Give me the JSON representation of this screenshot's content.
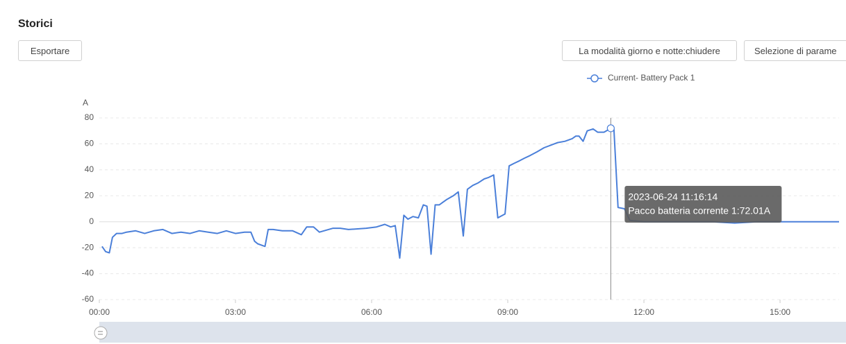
{
  "header": {
    "title": "Storici"
  },
  "buttons": {
    "export": "Esportare",
    "day_night": "La modalità giorno e notte:chiudere",
    "params": "Selezione di parame"
  },
  "chart_data": {
    "type": "line",
    "y_label": "A",
    "x": [
      0.06,
      0.14,
      0.22,
      0.29,
      0.38,
      0.5,
      0.6,
      0.8,
      1.0,
      1.2,
      1.4,
      1.6,
      1.8,
      2.0,
      2.2,
      2.4,
      2.6,
      2.8,
      3.0,
      3.2,
      3.34,
      3.42,
      3.49,
      3.65,
      3.72,
      3.83,
      4.03,
      4.26,
      4.45,
      4.57,
      4.72,
      4.85,
      4.95,
      5.15,
      5.31,
      5.49,
      5.88,
      6.11,
      6.29,
      6.42,
      6.52,
      6.62,
      6.71,
      6.8,
      6.91,
      7.03,
      7.14,
      7.22,
      7.31,
      7.4,
      7.49,
      7.65,
      7.8,
      7.91,
      8.02,
      8.11,
      8.23,
      8.35,
      8.48,
      8.57,
      8.69,
      8.78,
      8.94,
      9.03,
      9.14,
      9.26,
      9.37,
      9.49,
      9.65,
      9.8,
      9.95,
      10.1,
      10.26,
      10.42,
      10.5,
      10.57,
      10.66,
      10.75,
      10.88,
      10.98,
      11.12,
      11.27,
      11.34,
      11.43,
      11.57,
      11.69,
      12.0,
      12.5,
      13.0,
      13.5,
      14.0,
      14.5,
      15.0,
      15.5,
      16.0,
      16.3
    ],
    "series": [
      {
        "name": "Current- Battery Pack 1",
        "color": "#4a7fd9",
        "values": [
          -19,
          -23,
          -24,
          -12,
          -9,
          -9,
          -8,
          -7,
          -9,
          -7,
          -6,
          -9,
          -8,
          -9,
          -7,
          -8,
          -9,
          -7,
          -9,
          -8,
          -8,
          -15,
          -17,
          -19,
          -6,
          -6,
          -7,
          -7,
          -10,
          -4,
          -4,
          -8,
          -7,
          -5,
          -5,
          -6,
          -5,
          -4,
          -2,
          -4,
          -3,
          -28,
          5,
          2,
          4,
          3,
          13,
          12,
          -25,
          13,
          13,
          17,
          20,
          23,
          -11,
          25,
          28,
          30,
          33,
          34,
          36,
          3,
          6,
          43,
          45,
          47,
          49,
          51,
          54,
          57,
          59,
          61,
          62,
          64,
          66,
          66,
          62,
          70,
          71.5,
          69,
          69,
          72.01,
          71,
          11,
          10,
          1,
          0,
          0,
          0,
          0,
          -1,
          0,
          0,
          0,
          0,
          0
        ]
      }
    ],
    "xlim": [
      0,
      16.3
    ],
    "xticks": [
      {
        "value": 0,
        "label": "00:00"
      },
      {
        "value": 3,
        "label": "03:00"
      },
      {
        "value": 6,
        "label": "06:00"
      },
      {
        "value": 9,
        "label": "09:00"
      },
      {
        "value": 12,
        "label": "12:00"
      },
      {
        "value": 15,
        "label": "15:00"
      }
    ],
    "ylim": [
      -60,
      80
    ],
    "yticks": [
      -60,
      -40,
      -20,
      0,
      20,
      40,
      60,
      80
    ],
    "grid": true,
    "tooltip": {
      "title": "2023-06-24 11:16:14",
      "text": "Pacco batteria corrente 1:72.01A"
    }
  }
}
